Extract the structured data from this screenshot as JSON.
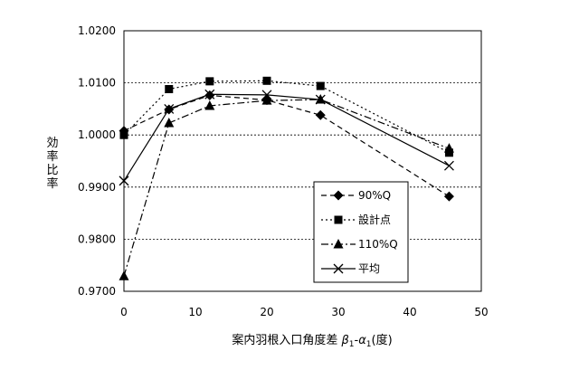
{
  "chart_data": {
    "type": "line",
    "xlabel_prefix": "案内羽根入口角度差 ",
    "xlabel_beta": "β",
    "xlabel_sub1": "1",
    "xlabel_minus": "-",
    "xlabel_alpha": "α",
    "xlabel_sub2": "1",
    "xlabel_unit": "(度)",
    "ylabel": "効率比率",
    "xlim": [
      0,
      50
    ],
    "ylim": [
      0.97,
      1.02
    ],
    "xticks": [
      "0",
      "10",
      "20",
      "30",
      "40",
      "50"
    ],
    "yticks": [
      "0.9700",
      "0.9800",
      "0.9900",
      "1.0000",
      "1.0100",
      "1.0200"
    ],
    "grid": "horizontal dotted",
    "legend_position": "inside lower-right",
    "series": [
      {
        "name": "90%Q",
        "marker": "diamond",
        "dash": "6 4",
        "x": [
          0,
          6.3,
          12,
          20,
          27.5,
          45.5
        ],
        "y": [
          1.0008,
          1.0049,
          1.0076,
          1.0067,
          1.0038,
          0.9882
        ]
      },
      {
        "name": "設計点",
        "marker": "square",
        "dash": "2 3",
        "x": [
          0,
          6.3,
          12,
          20,
          27.5,
          45.5
        ],
        "y": [
          1.0,
          1.0088,
          1.0103,
          1.0104,
          1.0094,
          0.9966
        ]
      },
      {
        "name": "110%Q",
        "marker": "triangle",
        "dash": "8 3 2 3",
        "x": [
          0,
          6.3,
          12,
          20,
          27.5,
          45.5
        ],
        "y": [
          0.9729,
          1.0023,
          1.0056,
          1.0066,
          1.0068,
          0.9974
        ]
      },
      {
        "name": "平均",
        "marker": "x",
        "dash": "",
        "x": [
          0,
          6.3,
          12,
          20,
          27.5,
          45.5
        ],
        "y": [
          0.9912,
          1.005,
          1.0078,
          1.0077,
          1.0068,
          0.9941
        ]
      }
    ]
  }
}
